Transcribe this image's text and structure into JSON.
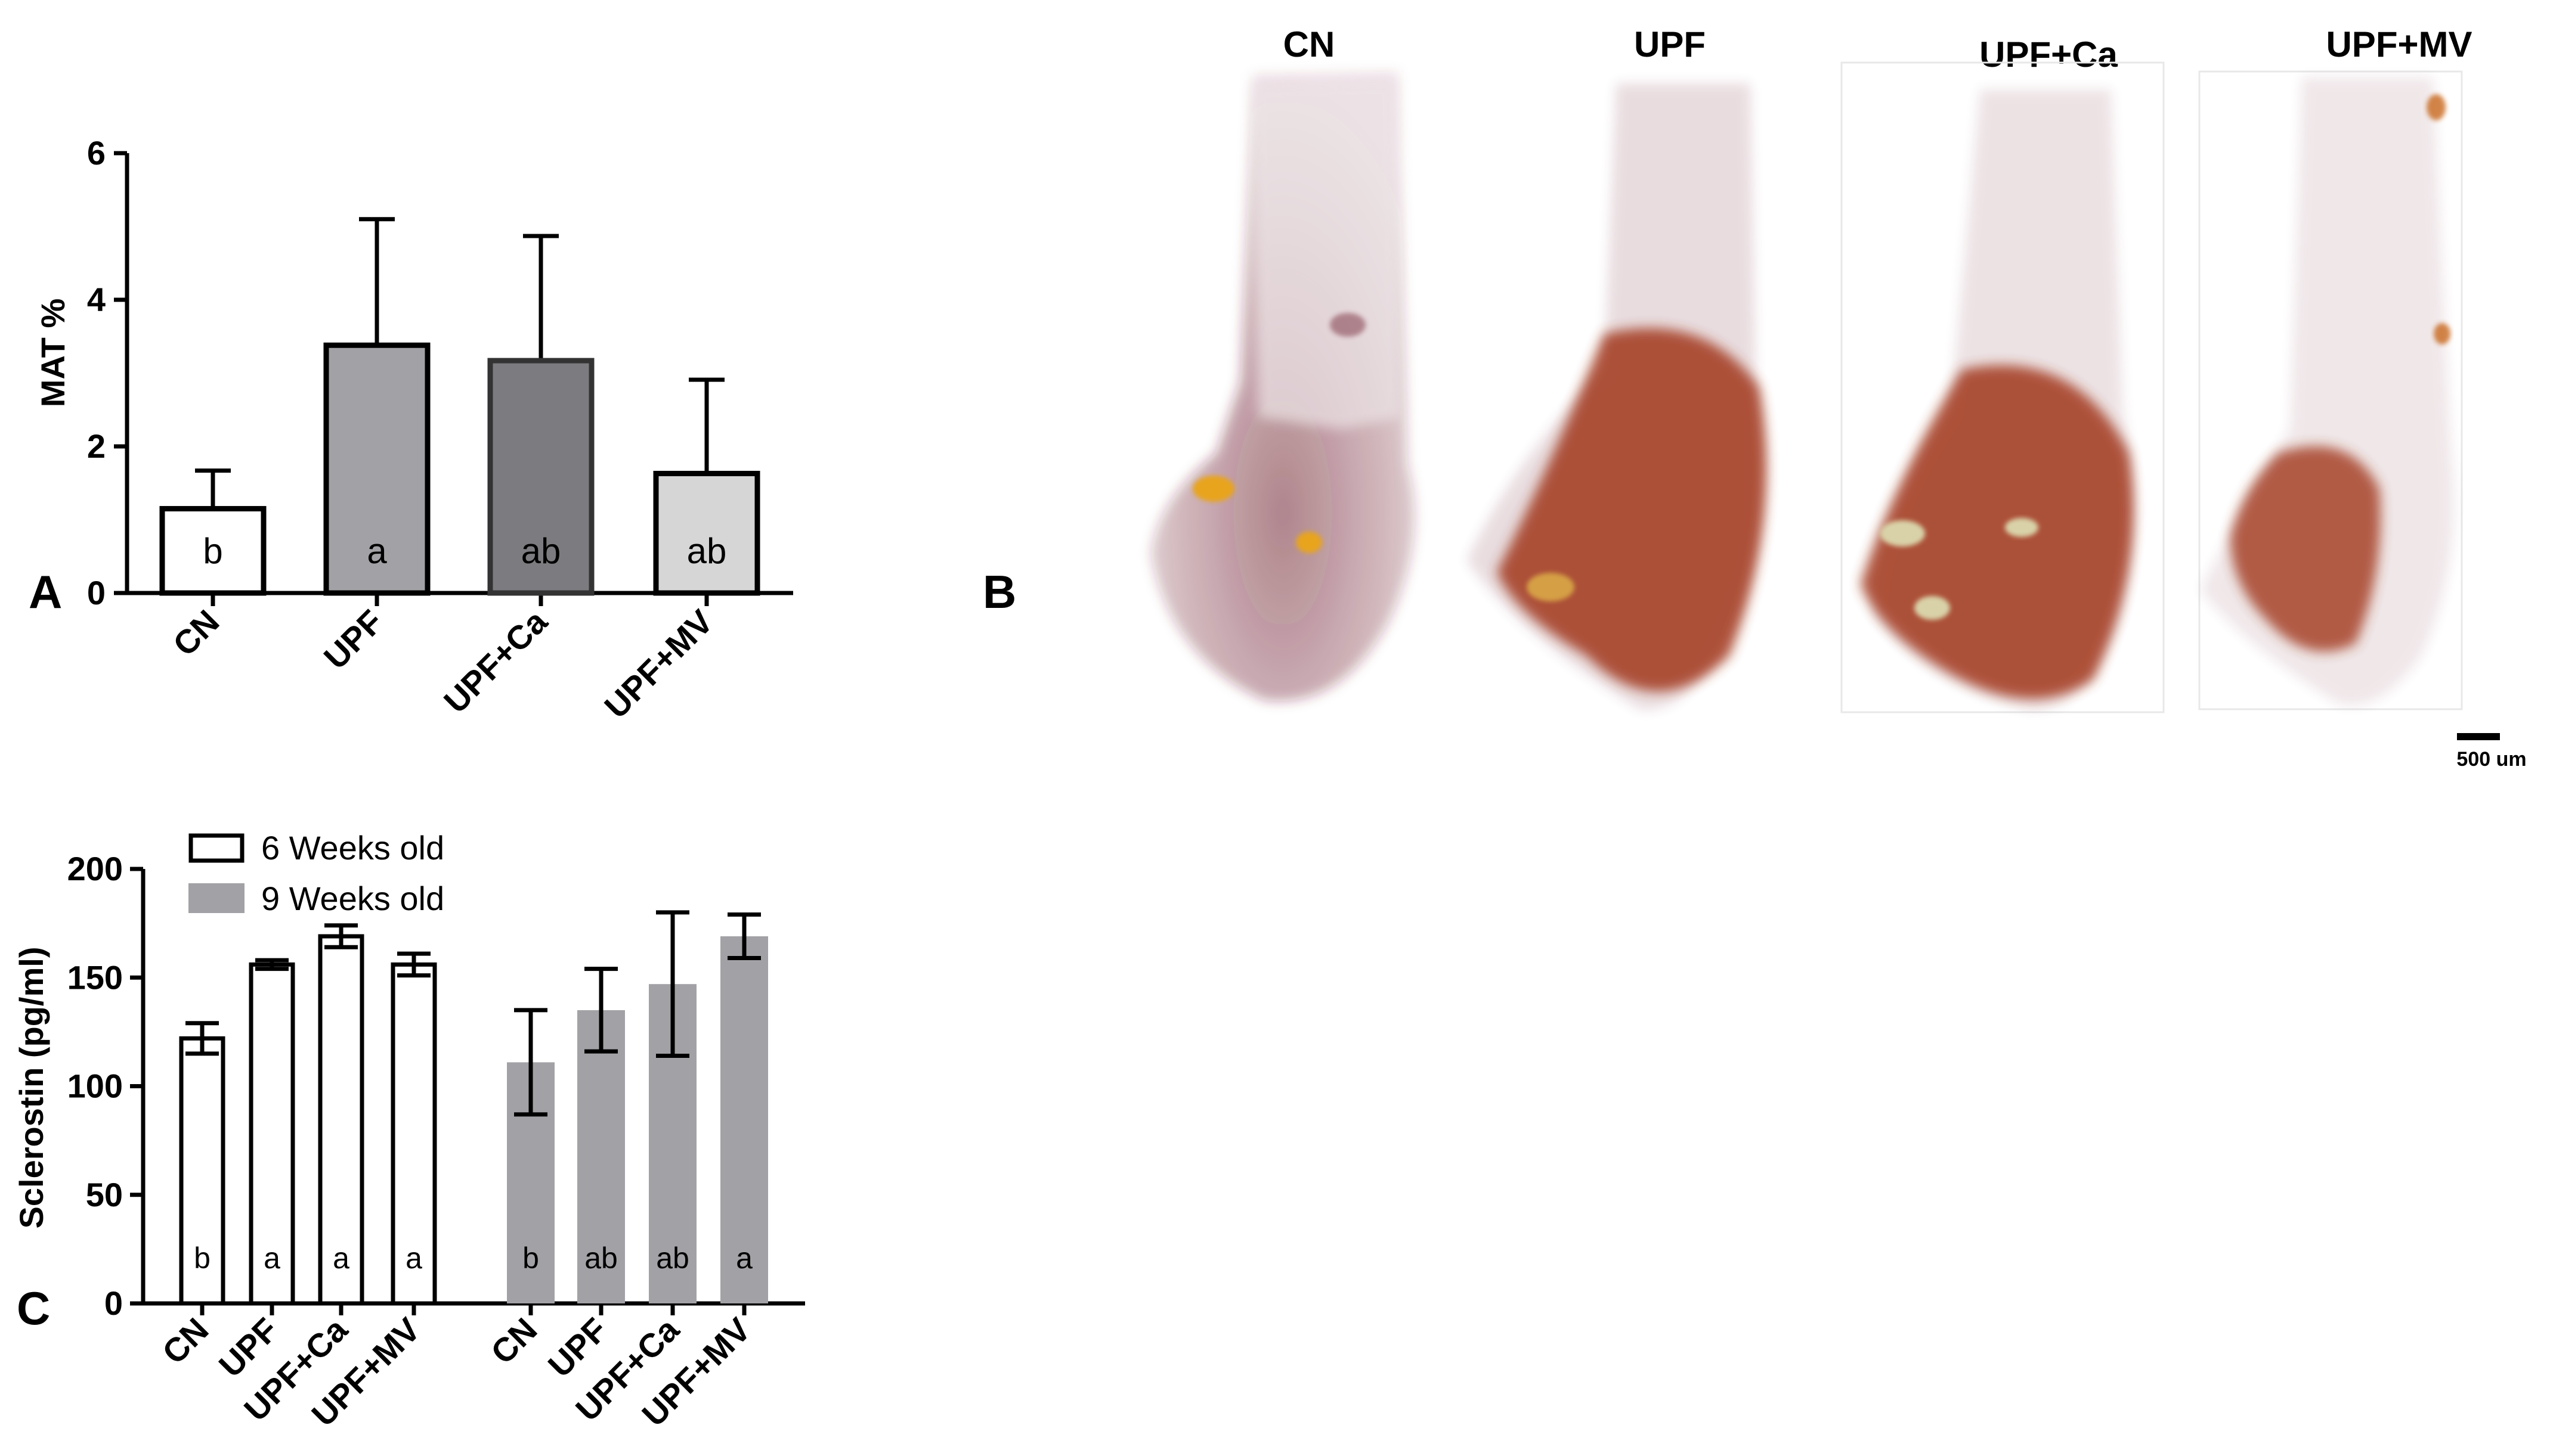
{
  "panels": {
    "a": "A",
    "b": "B",
    "c": "C"
  },
  "colors": {
    "cn": "#ffffff",
    "upf": "#a2a2a6",
    "upf_ca": "#7c7c80",
    "upf_mv": "#d6d6d6",
    "nine_weeks": "#a2a2a6",
    "bone": "#6e1f2e",
    "fat": "#c8681a"
  },
  "chart_data": [
    {
      "type": "bar",
      "panel": "A",
      "categories": [
        "CN",
        "UPF",
        "UPF+Ca",
        "UPF+MV"
      ],
      "values": [
        1.15,
        3.38,
        3.17,
        1.63
      ],
      "errors": [
        0.52,
        1.72,
        1.7,
        1.28
      ],
      "significance": [
        "b",
        "a",
        "ab",
        "ab"
      ],
      "ylabel": "MAT %",
      "ylim": [
        0,
        6
      ],
      "yticks": [
        0,
        2,
        4,
        6
      ],
      "grid": false,
      "legend": "none"
    },
    {
      "type": "bar",
      "panel": "C",
      "categories": [
        "CN",
        "UPF",
        "UPF+Ca",
        "UPF+MV"
      ],
      "series": [
        {
          "name": "6 Weeks old",
          "values": [
            122,
            156,
            169,
            156
          ],
          "errors": [
            7,
            2,
            5,
            5
          ],
          "significance": [
            "b",
            "a",
            "a",
            "a"
          ]
        },
        {
          "name": "9 Weeks old",
          "values": [
            111,
            135,
            147,
            169
          ],
          "errors": [
            24,
            19,
            33,
            10
          ],
          "significance": [
            "b",
            "ab",
            "ab",
            "a"
          ]
        }
      ],
      "ylabel": "Sclerostin (pg/ml)",
      "ylim": [
        0,
        200
      ],
      "yticks": [
        0,
        50,
        100,
        150,
        200
      ],
      "grid": false,
      "legend": "top-left"
    }
  ],
  "images": {
    "labels": [
      "CN",
      "UPF",
      "UPF+Ca",
      "UPF+MV"
    ],
    "scale_bar": "500 um"
  }
}
